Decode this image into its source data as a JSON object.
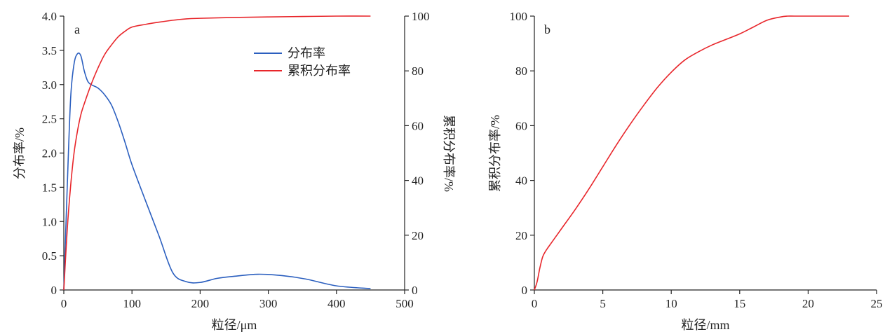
{
  "colors": {
    "distribution": "#2b5fbf",
    "cumulative": "#e8262b",
    "axis": "#222222"
  },
  "chart_data": [
    {
      "type": "line",
      "panel_label": "a",
      "xlabel": "粒径/μm",
      "ylabel_left": "分布率/%",
      "ylabel_right": "累积分布率/%",
      "xlim": [
        0,
        500
      ],
      "ylim_left": [
        0,
        4.0
      ],
      "ylim_right": [
        0,
        100
      ],
      "x_ticks": [
        "0",
        "100",
        "200",
        "300",
        "400",
        "500"
      ],
      "y_left_ticks": [
        "0",
        "0.5",
        "1.0",
        "1.5",
        "2.0",
        "2.5",
        "3.0",
        "3.5",
        "4.0"
      ],
      "y_right_ticks": [
        "0",
        "20",
        "40",
        "60",
        "80",
        "100"
      ],
      "legend_position": "top-right",
      "grid": false,
      "series": [
        {
          "name": "分布率",
          "axis": "left",
          "color": "#2b5fbf",
          "x": [
            0,
            5,
            10,
            15,
            20,
            25,
            30,
            35,
            40,
            50,
            60,
            70,
            80,
            90,
            100,
            120,
            140,
            160,
            180,
            200,
            225,
            250,
            285,
            320,
            355,
            400,
            450
          ],
          "y": [
            0.0,
            1.5,
            2.8,
            3.3,
            3.45,
            3.42,
            3.2,
            3.05,
            3.0,
            2.95,
            2.85,
            2.7,
            2.45,
            2.15,
            1.83,
            1.3,
            0.78,
            0.25,
            0.12,
            0.11,
            0.17,
            0.2,
            0.23,
            0.21,
            0.16,
            0.06,
            0.02
          ]
        },
        {
          "name": "累积分布率",
          "axis": "right",
          "color": "#e8262b",
          "x": [
            0,
            5,
            10,
            15,
            20,
            25,
            30,
            40,
            50,
            60,
            70,
            80,
            90,
            100,
            120,
            140,
            160,
            180,
            200,
            250,
            300,
            350,
            400,
            450
          ],
          "y": [
            0,
            22,
            38,
            50,
            58,
            64,
            68,
            75,
            81,
            86,
            89.5,
            92.5,
            94.5,
            96,
            97,
            97.8,
            98.5,
            99,
            99.2,
            99.5,
            99.7,
            99.85,
            100,
            100
          ]
        }
      ]
    },
    {
      "type": "line",
      "panel_label": "b",
      "xlabel": "粒径/mm",
      "ylabel": "累积分布率/%",
      "xlim": [
        0,
        25
      ],
      "ylim": [
        0,
        100
      ],
      "x_ticks": [
        "0",
        "5",
        "10",
        "15",
        "20",
        "25"
      ],
      "y_ticks": [
        "0",
        "20",
        "40",
        "60",
        "80",
        "100"
      ],
      "grid": false,
      "series": [
        {
          "color": "#e8262b",
          "x": [
            0,
            0.2,
            0.4,
            0.6,
            0.8,
            1.0,
            1.5,
            2,
            3,
            4,
            5,
            6,
            7,
            8,
            9,
            10,
            11,
            12,
            13,
            14,
            15,
            16,
            17,
            18,
            18.5,
            19,
            20,
            21,
            22,
            23
          ],
          "y": [
            0,
            3,
            8,
            12,
            14,
            15.5,
            19,
            22.5,
            29.5,
            37,
            45,
            53,
            60.5,
            67.5,
            74,
            79.5,
            84,
            87,
            89.5,
            91.5,
            93.5,
            96,
            98.5,
            99.7,
            100,
            100,
            100,
            100,
            100,
            100
          ]
        }
      ]
    }
  ]
}
